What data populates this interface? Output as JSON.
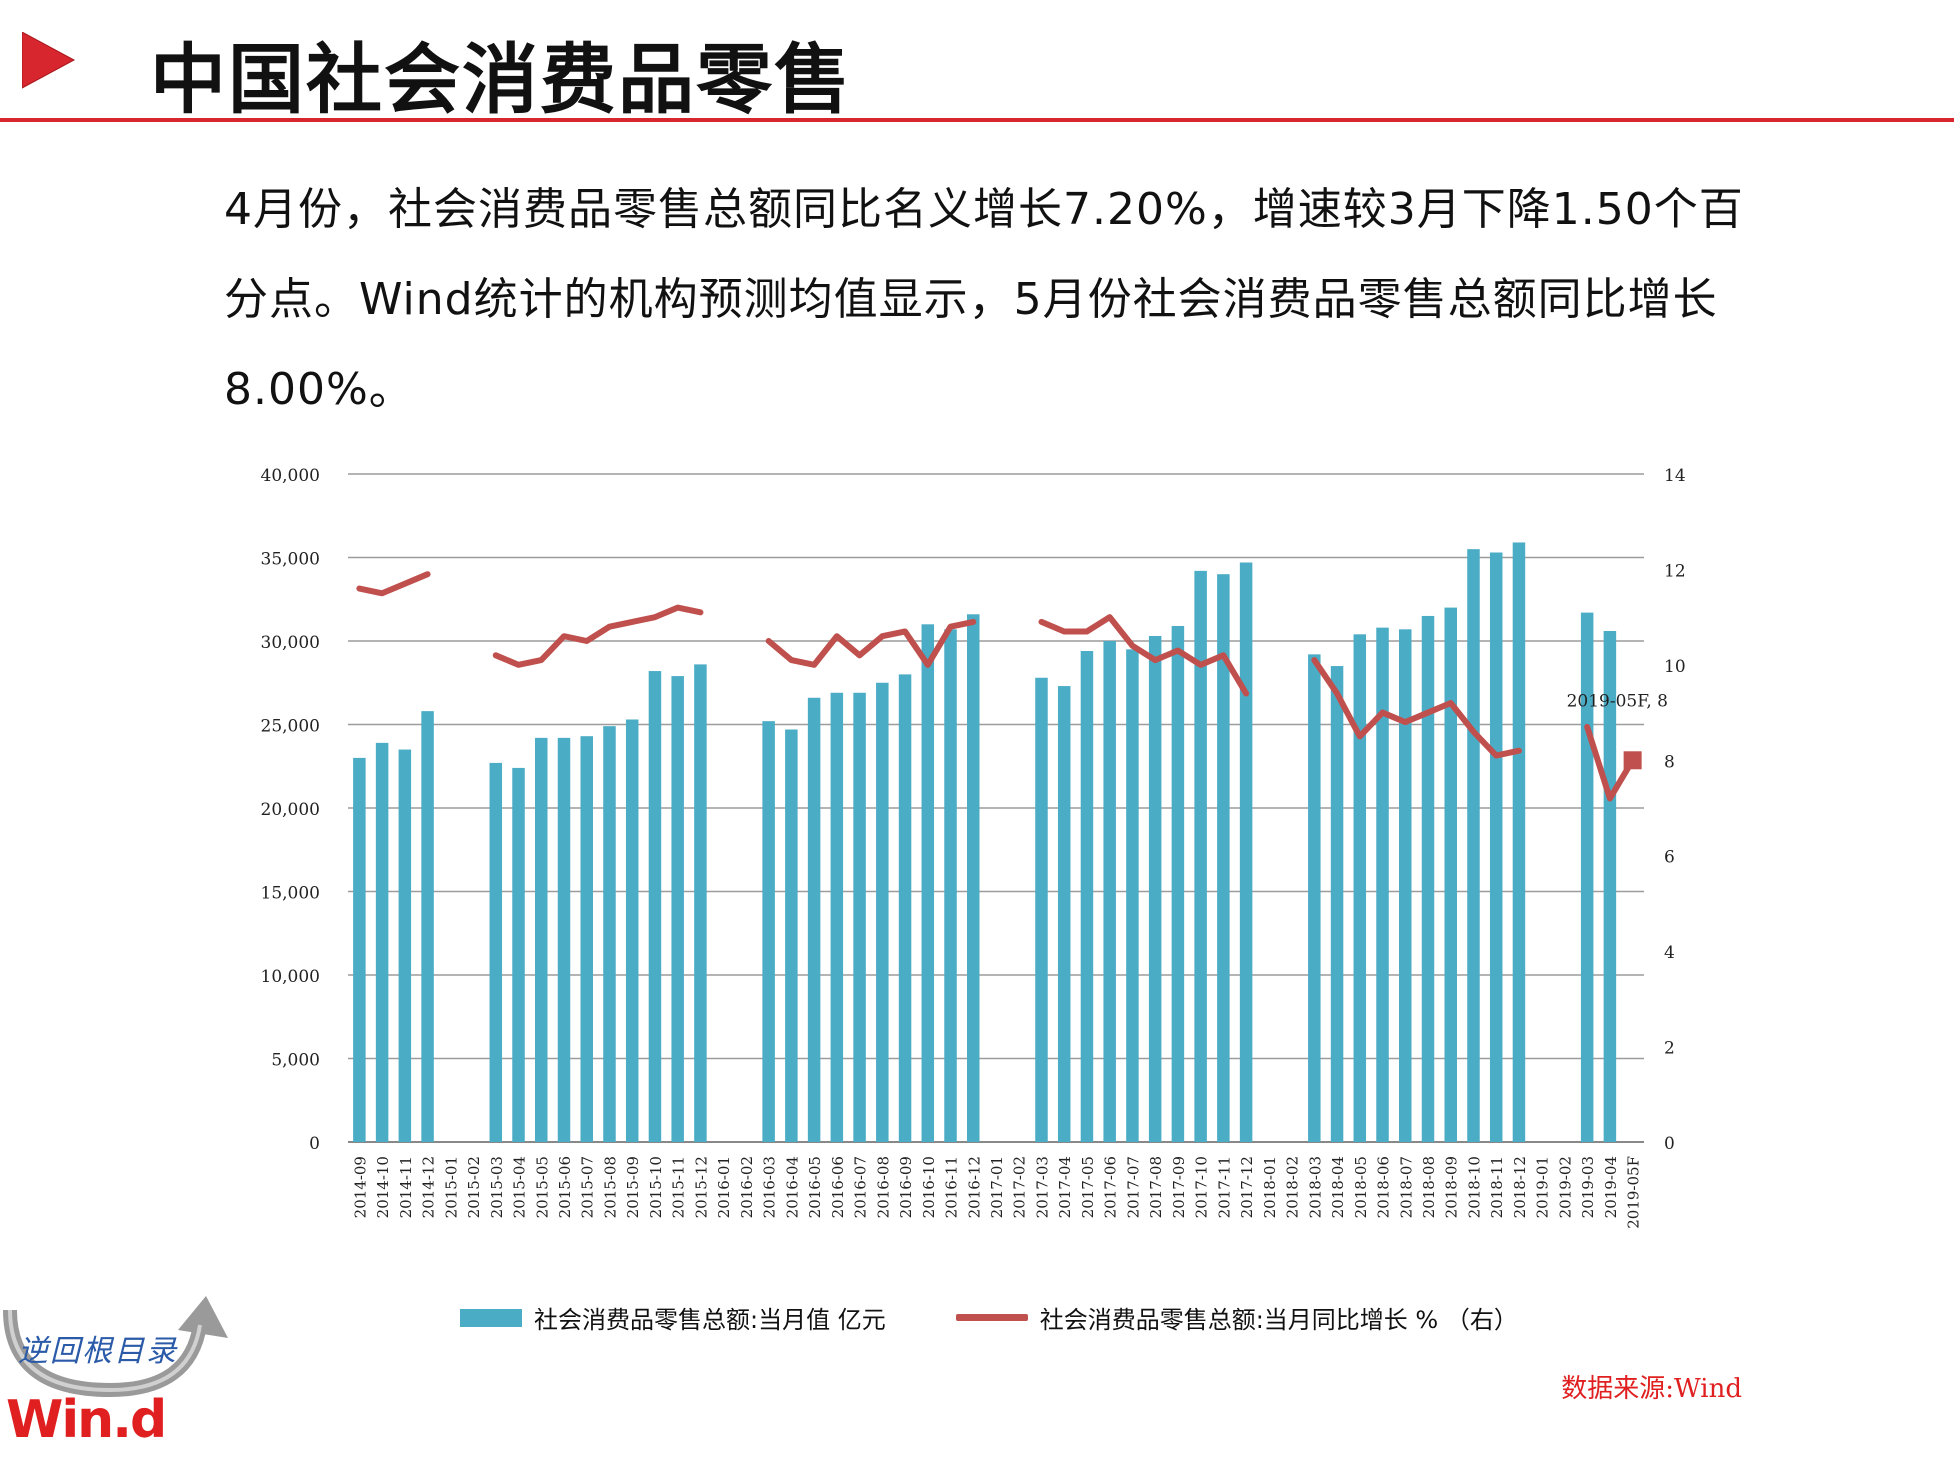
{
  "header": {
    "title": "中国社会消费品零售",
    "accent_color": "#d8262e"
  },
  "intro": {
    "text": "4月份，社会消费品零售总额同比名义增长7.20%，增速较3月下降1.50个百分点。Wind统计的机构预测均值显示，5月份社会消费品零售总额同比增长8.00%。"
  },
  "chart_data": {
    "type": "bar",
    "x": [
      "2014-09",
      "2014-10",
      "2014-11",
      "2014-12",
      "2015-01",
      "2015-02",
      "2015-03",
      "2015-04",
      "2015-05",
      "2015-06",
      "2015-07",
      "2015-08",
      "2015-09",
      "2015-10",
      "2015-11",
      "2015-12",
      "2016-01",
      "2016-02",
      "2016-03",
      "2016-04",
      "2016-05",
      "2016-06",
      "2016-07",
      "2016-08",
      "2016-09",
      "2016-10",
      "2016-11",
      "2016-12",
      "2017-01",
      "2017-02",
      "2017-03",
      "2017-04",
      "2017-05",
      "2017-06",
      "2017-07",
      "2017-08",
      "2017-09",
      "2017-10",
      "2017-11",
      "2017-12",
      "2018-01",
      "2018-02",
      "2018-03",
      "2018-04",
      "2018-05",
      "2018-06",
      "2018-07",
      "2018-08",
      "2018-09",
      "2018-10",
      "2018-11",
      "2018-12",
      "2019-01",
      "2019-02",
      "2019-03",
      "2019-04",
      "2019-05F"
    ],
    "series": [
      {
        "name": "社会消费品零售总额:当月值 亿元",
        "type": "bar",
        "axis": "left",
        "color": "#4bacc6",
        "values": [
          23000,
          23900,
          23500,
          25800,
          null,
          null,
          22700,
          22400,
          24200,
          24200,
          24300,
          24900,
          25300,
          28200,
          27900,
          28600,
          null,
          null,
          25200,
          24700,
          26600,
          26900,
          26900,
          27500,
          28000,
          31000,
          30700,
          31600,
          null,
          null,
          27800,
          27300,
          29400,
          30000,
          29500,
          30300,
          30900,
          34200,
          34000,
          34700,
          null,
          null,
          29200,
          28500,
          30400,
          30800,
          30700,
          31500,
          32000,
          35500,
          35300,
          35900,
          null,
          null,
          31700,
          30600,
          null
        ]
      },
      {
        "name": "社会消费品零售总额:当月同比增长 % （右）",
        "type": "line",
        "axis": "right",
        "color": "#c0504d",
        "values": [
          11.6,
          11.5,
          11.7,
          11.9,
          null,
          null,
          10.2,
          10.0,
          10.1,
          10.6,
          10.5,
          10.8,
          10.9,
          11.0,
          11.2,
          11.1,
          null,
          null,
          10.5,
          10.1,
          10.0,
          10.6,
          10.2,
          10.6,
          10.7,
          10.0,
          10.8,
          10.9,
          null,
          null,
          10.9,
          10.7,
          10.7,
          11.0,
          10.4,
          10.1,
          10.3,
          10.0,
          10.2,
          9.4,
          null,
          null,
          10.1,
          9.4,
          8.5,
          9.0,
          8.8,
          9.0,
          9.2,
          8.6,
          8.1,
          8.2,
          null,
          null,
          8.7,
          7.2,
          8.0
        ]
      }
    ],
    "annotation": "2019-05F, 8",
    "left_axis": {
      "range": [
        0,
        40000
      ],
      "ticks": [
        "0",
        "5,000",
        "10,000",
        "15,000",
        "20,000",
        "25,000",
        "30,000",
        "35,000",
        "40,000"
      ]
    },
    "right_axis": {
      "range": [
        0,
        14
      ],
      "ticks": [
        "0",
        "2",
        "4",
        "6",
        "8",
        "10",
        "12",
        "14"
      ]
    },
    "grid": true,
    "legend_position": "bottom"
  },
  "source": {
    "text": "数据来源:Wind",
    "color": "#e02020"
  },
  "logo": {
    "script_text": "逆回根目录",
    "brand_text": "Win.d",
    "brand_color": "#e02020"
  }
}
